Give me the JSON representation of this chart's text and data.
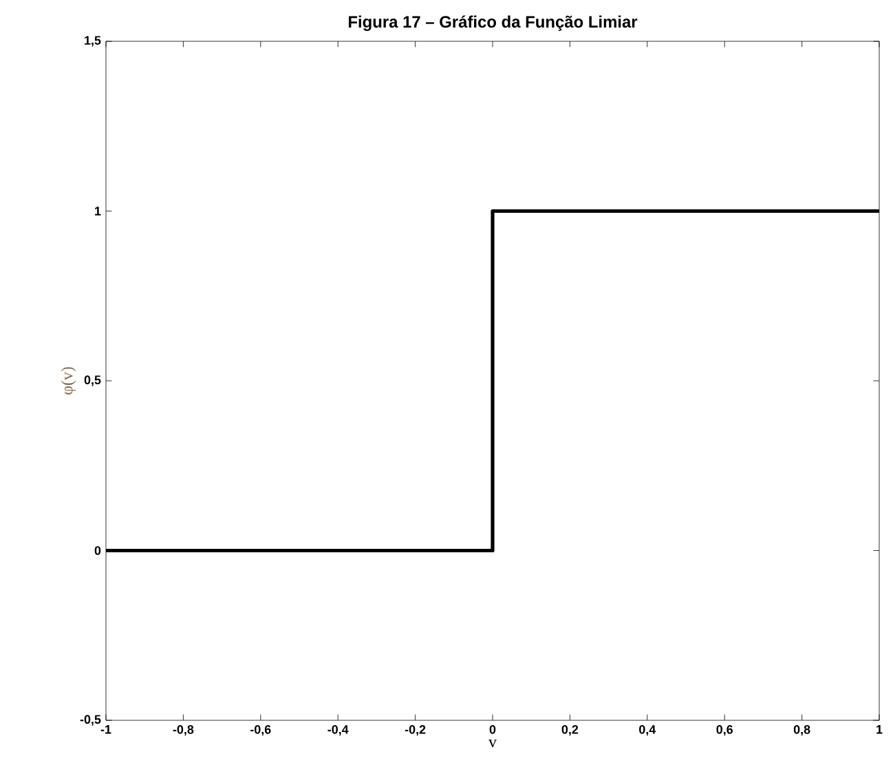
{
  "chart_data": {
    "type": "line",
    "title": "Figura 17 – Gráfico da Função Limiar",
    "xlabel": "v",
    "ylabel": "φ(v)",
    "x": [
      -1,
      0,
      0,
      1
    ],
    "series": [
      {
        "color": "#000000",
        "values": [
          0,
          0,
          1,
          1
        ]
      }
    ],
    "xlim": [
      -1,
      1
    ],
    "xticks": [
      {
        "value": -1,
        "label": "-1"
      },
      {
        "value": -0.8,
        "label": "-0,8"
      },
      {
        "value": -0.6,
        "label": "-0,6"
      },
      {
        "value": -0.4,
        "label": "-0,4"
      },
      {
        "value": -0.2,
        "label": "-0,2"
      },
      {
        "value": 0,
        "label": "0"
      },
      {
        "value": 0.2,
        "label": "0,2"
      },
      {
        "value": 0.4,
        "label": "0,4"
      },
      {
        "value": 0.6,
        "label": "0,6"
      },
      {
        "value": 0.8,
        "label": "0,8"
      },
      {
        "value": 1,
        "label": "1"
      }
    ],
    "ylim": [
      -0.5,
      1.5
    ],
    "yticks": [
      {
        "value": -0.5,
        "label": "-0,5"
      },
      {
        "value": 0,
        "label": "0"
      },
      {
        "value": 0.5,
        "label": "0,5"
      },
      {
        "value": 1,
        "label": "1"
      },
      {
        "value": 1.5,
        "label": "1,5"
      }
    ],
    "grid": false,
    "marker": "none",
    "line_style": "solid"
  }
}
